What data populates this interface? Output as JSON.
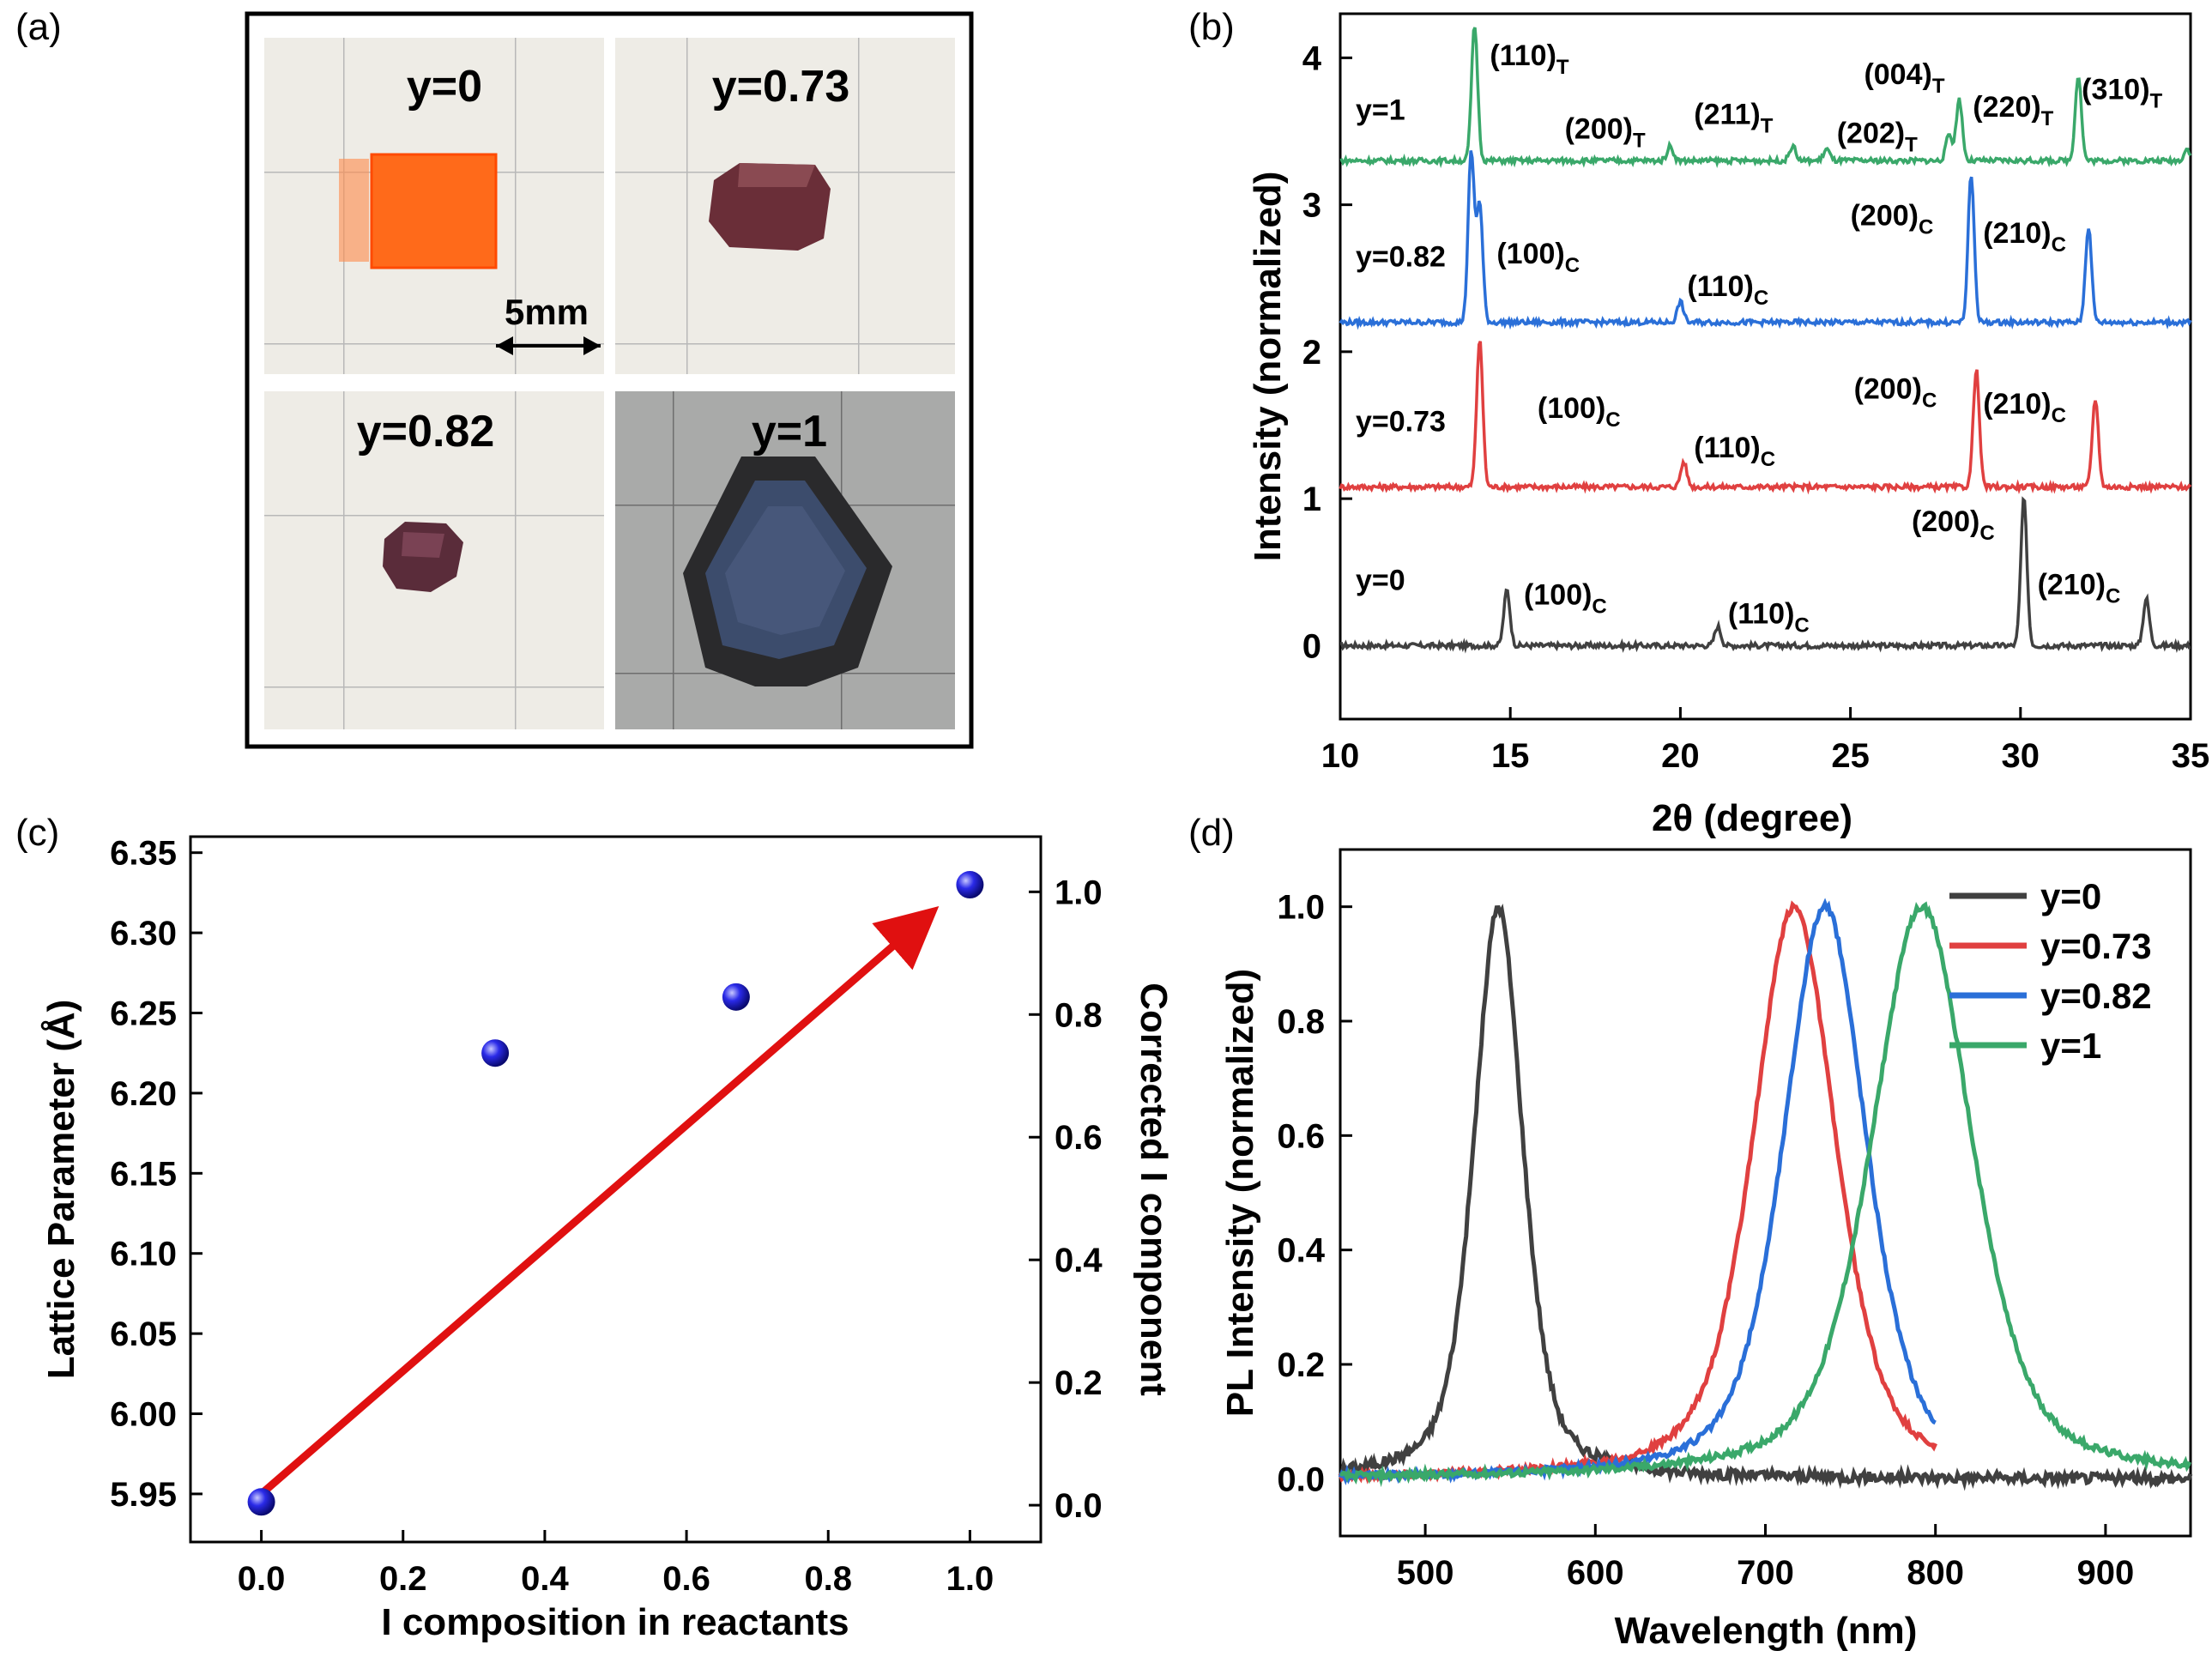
{
  "panel_labels": {
    "a": "(a)",
    "b": "(b)",
    "c": "(c)",
    "d": "(d)"
  },
  "panel_a": {
    "photos": [
      {
        "label": "y=0",
        "description": "orange square crystal"
      },
      {
        "label": "y=0.73",
        "description": "dark red crystal"
      },
      {
        "label": "y=0.82",
        "description": "dark purple crystal"
      },
      {
        "label": "y=1",
        "description": "black hexagonal crystal"
      }
    ],
    "scale_bar": "5mm"
  },
  "chart_data": [
    {
      "id": "b",
      "type": "line",
      "xlabel": "2θ (degree)",
      "ylabel": "Intensity (normalized)",
      "xlim": [
        10,
        35
      ],
      "ylim": [
        -0.5,
        4.3
      ],
      "xticks": [
        10,
        15,
        20,
        25,
        30,
        35
      ],
      "yticks": [
        0,
        1,
        2,
        3,
        4
      ],
      "series": [
        {
          "name": "y=0",
          "color": "#404040",
          "offset": 0,
          "peaks": [
            [
              14.9,
              0.38
            ],
            [
              21.1,
              0.13
            ],
            [
              30.1,
              1.0
            ],
            [
              33.7,
              0.32
            ]
          ],
          "labels": [
            {
              "hkl": "(100)",
              "sub": "C",
              "x": 15.4,
              "y": 0.28
            },
            {
              "hkl": "(110)",
              "sub": "C",
              "x": 21.4,
              "y": 0.15
            },
            {
              "hkl": "(200)",
              "sub": "C",
              "x": 26.8,
              "y": 0.78
            },
            {
              "hkl": "(210)",
              "sub": "C",
              "x": 30.5,
              "y": 0.35
            }
          ]
        },
        {
          "name": "y=0.73",
          "color": "#e04040",
          "offset": 1.08,
          "peaks": [
            [
              14.1,
              1.0
            ],
            [
              20.1,
              0.17
            ],
            [
              28.7,
              0.8
            ],
            [
              32.2,
              0.6
            ]
          ],
          "labels": [
            {
              "hkl": "(100)",
              "sub": "C",
              "x": 15.8,
              "y": 1.55
            },
            {
              "hkl": "(110)",
              "sub": "C",
              "x": 20.4,
              "y": 1.28
            },
            {
              "hkl": "(200)",
              "sub": "C",
              "x": 25.1,
              "y": 1.68
            },
            {
              "hkl": "(210)",
              "sub": "C",
              "x": 28.9,
              "y": 1.58
            }
          ]
        },
        {
          "name": "y=0.82",
          "color": "#2a6fd8",
          "offset": 2.2,
          "peaks": [
            [
              13.85,
              1.15
            ],
            [
              14.1,
              0.8
            ],
            [
              20.0,
              0.14
            ],
            [
              28.55,
              1.0
            ],
            [
              32.0,
              0.65
            ]
          ],
          "labels": [
            {
              "hkl": "(100)",
              "sub": "C",
              "x": 14.6,
              "y": 2.6
            },
            {
              "hkl": "(110)",
              "sub": "C",
              "x": 20.2,
              "y": 2.38
            },
            {
              "hkl": "(200)",
              "sub": "C",
              "x": 25.0,
              "y": 2.86
            },
            {
              "hkl": "(210)",
              "sub": "C",
              "x": 28.9,
              "y": 2.74
            }
          ]
        },
        {
          "name": "y=1",
          "color": "#3aa86a",
          "offset": 3.3,
          "peaks": [
            [
              13.95,
              0.92
            ],
            [
              19.7,
              0.1
            ],
            [
              23.3,
              0.1
            ],
            [
              24.3,
              0.08
            ],
            [
              27.9,
              0.18
            ],
            [
              28.2,
              0.42
            ],
            [
              31.7,
              0.58
            ],
            [
              34.9,
              0.08
            ]
          ],
          "labels": [
            {
              "hkl": "(110)",
              "sub": "T",
              "x": 14.4,
              "y": 3.95
            },
            {
              "hkl": "(200)",
              "sub": "T",
              "x": 16.6,
              "y": 3.45
            },
            {
              "hkl": "(211)",
              "sub": "T",
              "x": 20.4,
              "y": 3.55
            },
            {
              "hkl": "(202)",
              "sub": "T",
              "x": 24.6,
              "y": 3.42
            },
            {
              "hkl": "(004)",
              "sub": "T",
              "x": 25.4,
              "y": 3.82
            },
            {
              "hkl": "(220)",
              "sub": "T",
              "x": 28.6,
              "y": 3.6
            },
            {
              "hkl": "(310)",
              "sub": "T",
              "x": 31.8,
              "y": 3.72
            }
          ]
        }
      ]
    },
    {
      "id": "c",
      "type": "scatter",
      "xlabel": "I composition in reactants",
      "ylabel": "Lattice Parameter (Å)",
      "ylabel_right": "Corrected I component",
      "xlim": [
        -0.1,
        1.1
      ],
      "ylim": [
        5.92,
        6.36
      ],
      "ylim_right": [
        -0.06,
        1.09
      ],
      "xticks": [
        0.0,
        0.2,
        0.4,
        0.6,
        0.8,
        1.0
      ],
      "yticks": [
        5.95,
        6.0,
        6.05,
        6.1,
        6.15,
        6.2,
        6.25,
        6.3,
        6.35
      ],
      "yticks_right": [
        0.0,
        0.2,
        0.4,
        0.6,
        0.8,
        1.0
      ],
      "x": [
        0.0,
        0.33,
        0.67,
        1.0
      ],
      "y": [
        5.945,
        6.225,
        6.26,
        6.33
      ],
      "point_color": "#2020e0",
      "arrow": {
        "from": [
          0.0,
          5.95
        ],
        "to": [
          0.98,
          6.32
        ],
        "color": "#e01010"
      }
    },
    {
      "id": "d",
      "type": "line",
      "xlabel": "Wavelength (nm)",
      "ylabel": "PL Intensity (normalized)",
      "xlim": [
        450,
        950
      ],
      "ylim": [
        -0.1,
        1.1
      ],
      "xticks": [
        500,
        600,
        700,
        800,
        900
      ],
      "yticks": [
        0.0,
        0.2,
        0.4,
        0.6,
        0.8,
        1.0
      ],
      "series": [
        {
          "name": "y=0",
          "color": "#404040",
          "peak": 543,
          "fwhm": 34,
          "x_range": [
            450,
            950
          ]
        },
        {
          "name": "y=0.73",
          "color": "#e04040",
          "peak": 717,
          "fwhm": 58,
          "x_range": [
            450,
            800
          ]
        },
        {
          "name": "y=0.82",
          "color": "#2a6fd8",
          "peak": 735,
          "fwhm": 58,
          "x_range": [
            450,
            800
          ]
        },
        {
          "name": "y=1",
          "color": "#3aa86a",
          "peak": 792,
          "fwhm": 70,
          "x_range": [
            450,
            950
          ]
        }
      ],
      "legend": "top-right"
    }
  ]
}
